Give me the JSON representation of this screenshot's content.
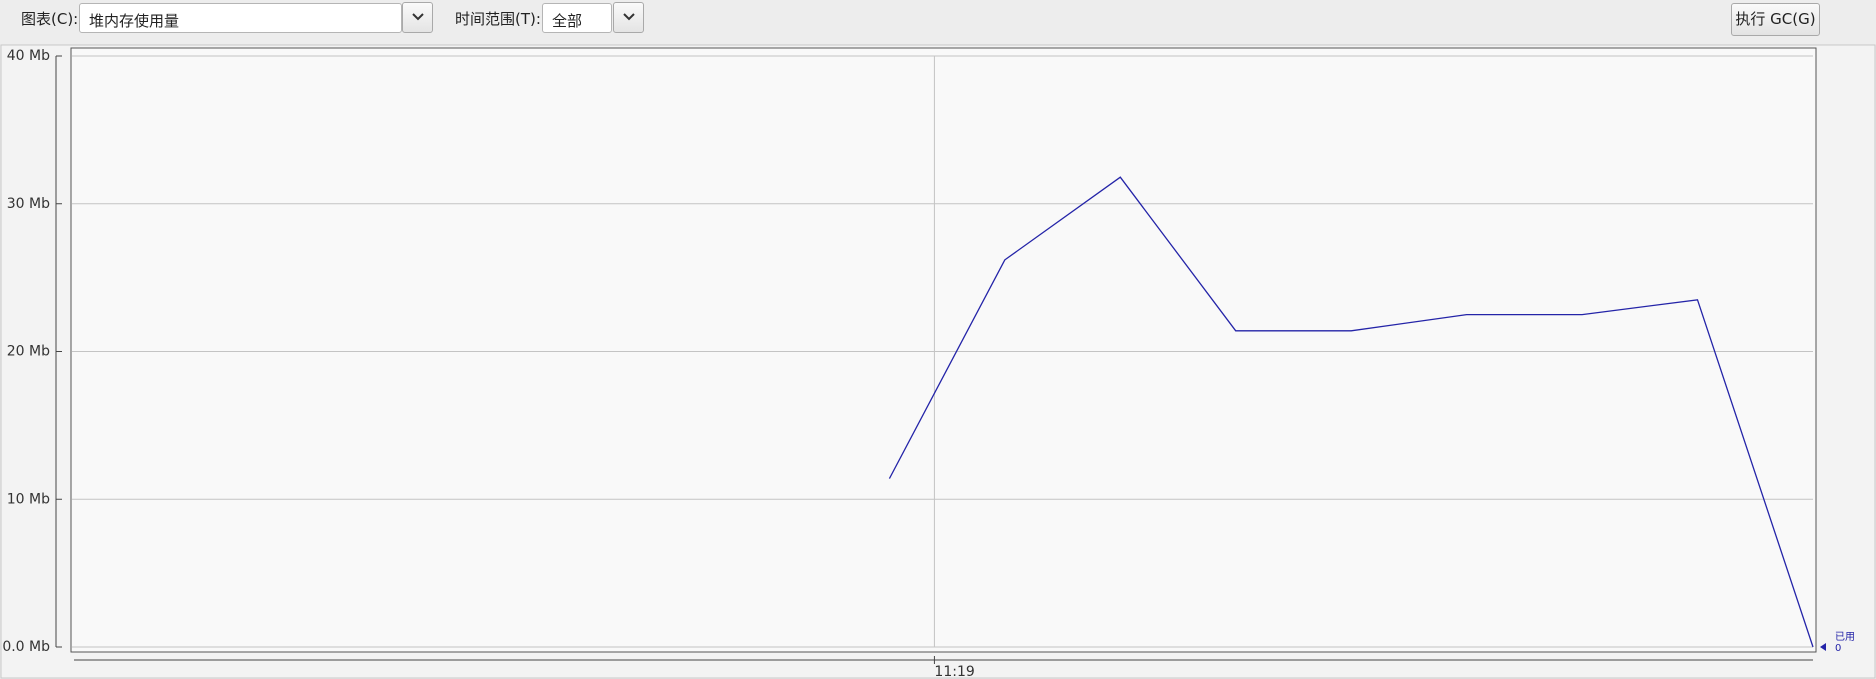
{
  "toolbar": {
    "chart_label": "图表(C):",
    "chart_value": "堆内存使用量",
    "range_label": "时间范围(T):",
    "range_value": "全部",
    "gc_button": "执行 GC(G)"
  },
  "chart_data": {
    "type": "line",
    "x": [
      0,
      1,
      2,
      3,
      4,
      5,
      6,
      7,
      8
    ],
    "series": [
      {
        "name": "已用",
        "color": "#2424a8",
        "values": [
          11.4,
          26.2,
          31.8,
          21.4,
          21.4,
          22.5,
          22.5,
          23.5,
          0
        ]
      }
    ],
    "xlim": [
      -7.08,
      8
    ],
    "xticks": [
      {
        "value": 0.39,
        "label": "11:19"
      }
    ],
    "ylim": [
      0,
      40
    ],
    "yticks": [
      {
        "value": 0,
        "label": "0.0 Mb"
      },
      {
        "value": 10,
        "label": "10 Mb"
      },
      {
        "value": 20,
        "label": "20 Mb"
      },
      {
        "value": 30,
        "label": "30 Mb"
      },
      {
        "value": 40,
        "label": "40 Mb"
      }
    ],
    "grid": true
  }
}
